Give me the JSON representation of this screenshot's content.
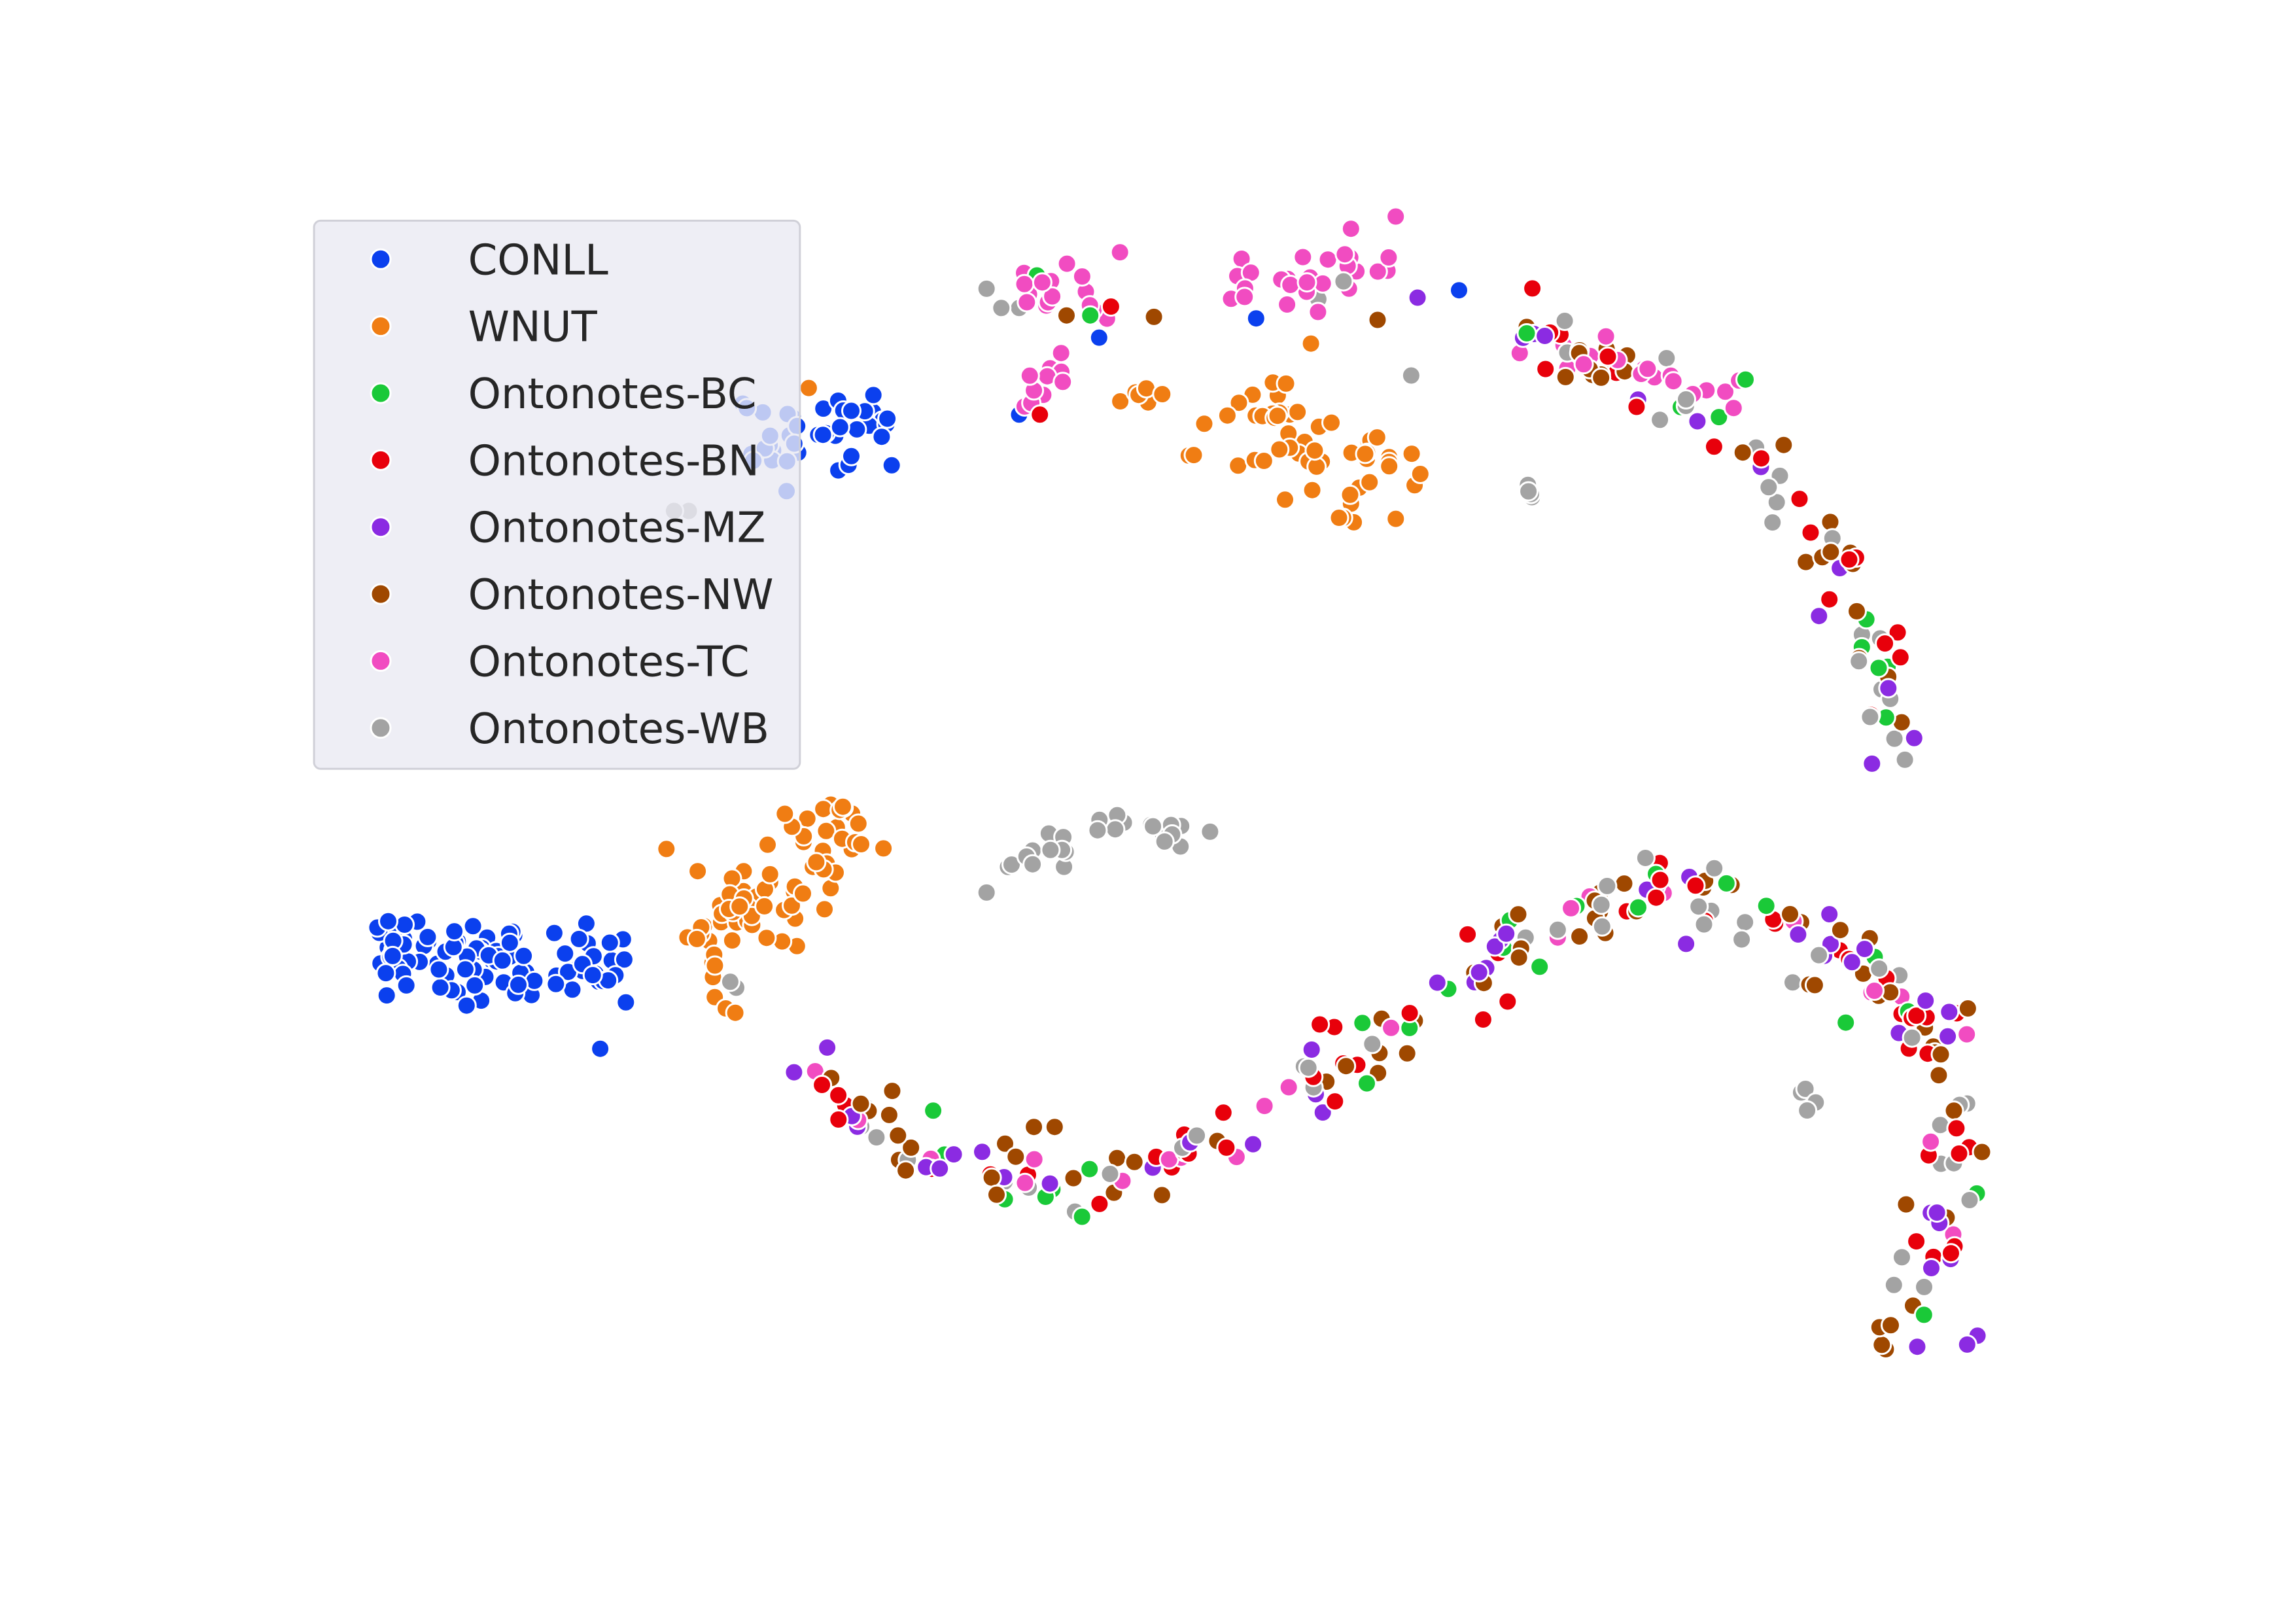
{
  "chart_data": {
    "type": "scatter",
    "title": "",
    "xlabel": "",
    "ylabel": "",
    "axes_visible": false,
    "grid": false,
    "xlim": [
      0,
      1550
    ],
    "ylim": [
      1096,
      0
    ],
    "legend": {
      "placement": "upper-left",
      "frame_color": "#eaeaf2"
    },
    "series": [
      {
        "name": "CONLL",
        "color": "#0b40ee",
        "clusters": [
          {
            "shape": "blob",
            "from": [
              250,
              645
            ],
            "to": [
              425,
              655
            ],
            "width": 34,
            "n": 95
          },
          {
            "shape": "blob",
            "from": [
              505,
              305
            ],
            "to": [
              600,
              280
            ],
            "width": 40,
            "n": 40
          },
          {
            "shape": "points",
            "points": [
              [
                742,
                228
              ],
              [
                985,
                196
              ],
              [
                688,
                280
              ],
              [
                848,
                215
              ]
            ]
          }
        ]
      },
      {
        "name": "WNUT",
        "color": "#f07d13",
        "clusters": [
          {
            "shape": "blob",
            "from": [
              465,
              655
            ],
            "to": [
              580,
              550
            ],
            "width": 40,
            "n": 80
          },
          {
            "shape": "blob",
            "from": [
              815,
              270
            ],
            "to": [
              955,
              335
            ],
            "width": 38,
            "n": 55
          },
          {
            "shape": "blob",
            "from": [
              755,
              270
            ],
            "to": [
              790,
              265
            ],
            "width": 8,
            "n": 6
          },
          {
            "shape": "points",
            "points": [
              [
                546,
                262
              ],
              [
                885,
                232
              ]
            ]
          }
        ]
      },
      {
        "name": "Ontonotes-BC",
        "color": "#1ac938",
        "clusters": [
          {
            "shape": "curve",
            "path": [
              [
                545,
                710
              ],
              [
                600,
                775
              ],
              [
                700,
                800
              ],
              [
                800,
                790
              ],
              [
                870,
                740
              ],
              [
                960,
                690
              ],
              [
                1040,
                630
              ],
              [
                1100,
                600
              ],
              [
                1200,
                620
              ],
              [
                1300,
                680
              ],
              [
                1320,
                760
              ],
              [
                1300,
                860
              ],
              [
                1265,
                920
              ]
            ],
            "width": 28,
            "n": 24
          },
          {
            "shape": "curve",
            "path": [
              [
                1020,
                225
              ],
              [
                1100,
                250
              ],
              [
                1180,
                300
              ],
              [
                1240,
                380
              ],
              [
                1270,
                450
              ],
              [
                1275,
                520
              ]
            ],
            "width": 24,
            "n": 10
          },
          {
            "shape": "points",
            "points": [
              [
                700,
                186
              ],
              [
                736,
                213
              ],
              [
                630,
                750
              ]
            ]
          }
        ]
      },
      {
        "name": "Ontonotes-BN",
        "color": "#e8000b",
        "clusters": [
          {
            "shape": "curve",
            "path": [
              [
                545,
                710
              ],
              [
                600,
                775
              ],
              [
                700,
                800
              ],
              [
                800,
                790
              ],
              [
                870,
                740
              ],
              [
                960,
                690
              ],
              [
                1040,
                630
              ],
              [
                1100,
                600
              ],
              [
                1200,
                620
              ],
              [
                1300,
                680
              ],
              [
                1320,
                760
              ],
              [
                1300,
                860
              ],
              [
                1265,
                920
              ]
            ],
            "width": 28,
            "n": 52
          },
          {
            "shape": "curve",
            "path": [
              [
                1020,
                225
              ],
              [
                1100,
                250
              ],
              [
                1180,
                300
              ],
              [
                1240,
                380
              ],
              [
                1270,
                450
              ],
              [
                1275,
                520
              ]
            ],
            "width": 24,
            "n": 18
          },
          {
            "shape": "points",
            "points": [
              [
                750,
                207
              ],
              [
                702,
                280
              ]
            ]
          }
        ]
      },
      {
        "name": "Ontonotes-MZ",
        "color": "#8b2be2",
        "clusters": [
          {
            "shape": "curve",
            "path": [
              [
                545,
                710
              ],
              [
                600,
                775
              ],
              [
                700,
                800
              ],
              [
                800,
                790
              ],
              [
                870,
                740
              ],
              [
                960,
                690
              ],
              [
                1040,
                630
              ],
              [
                1100,
                600
              ],
              [
                1200,
                620
              ],
              [
                1300,
                680
              ],
              [
                1320,
                760
              ],
              [
                1300,
                860
              ],
              [
                1265,
                920
              ]
            ],
            "width": 28,
            "n": 44
          },
          {
            "shape": "curve",
            "path": [
              [
                1020,
                225
              ],
              [
                1100,
                250
              ],
              [
                1180,
                300
              ],
              [
                1240,
                380
              ],
              [
                1270,
                450
              ],
              [
                1275,
                520
              ]
            ],
            "width": 24,
            "n": 10
          },
          {
            "shape": "points",
            "points": [
              [
                1228,
                416
              ],
              [
                1328,
                908
              ],
              [
                1335,
                902
              ],
              [
                957,
                201
              ]
            ]
          }
        ]
      },
      {
        "name": "Ontonotes-NW",
        "color": "#9f4800",
        "clusters": [
          {
            "shape": "curve",
            "path": [
              [
                545,
                710
              ],
              [
                600,
                775
              ],
              [
                700,
                800
              ],
              [
                800,
                790
              ],
              [
                870,
                740
              ],
              [
                960,
                690
              ],
              [
                1040,
                630
              ],
              [
                1100,
                600
              ],
              [
                1200,
                620
              ],
              [
                1300,
                680
              ],
              [
                1320,
                760
              ],
              [
                1300,
                860
              ],
              [
                1265,
                920
              ]
            ],
            "width": 28,
            "n": 70
          },
          {
            "shape": "curve",
            "path": [
              [
                1020,
                225
              ],
              [
                1100,
                250
              ],
              [
                1180,
                300
              ],
              [
                1240,
                380
              ],
              [
                1270,
                450
              ],
              [
                1275,
                520
              ]
            ],
            "width": 24,
            "n": 24
          },
          {
            "shape": "points",
            "points": [
              [
                720,
                213
              ],
              [
                779,
                214
              ],
              [
                930,
                216
              ],
              [
                698,
                761
              ],
              [
                712,
                761
              ]
            ]
          }
        ]
      },
      {
        "name": "Ontonotes-TC",
        "color": "#f14cc1",
        "clusters": [
          {
            "shape": "blob",
            "from": [
              830,
              200
            ],
            "to": [
              950,
              180
            ],
            "width": 26,
            "n": 28
          },
          {
            "shape": "blob",
            "from": [
              690,
              190
            ],
            "to": [
              755,
              195
            ],
            "width": 26,
            "n": 16
          },
          {
            "shape": "blob",
            "from": [
              690,
              275
            ],
            "to": [
              720,
              238
            ],
            "width": 14,
            "n": 10
          },
          {
            "shape": "curve",
            "path": [
              [
                1020,
                220
              ],
              [
                1100,
                245
              ],
              [
                1170,
                280
              ]
            ],
            "width": 22,
            "n": 22
          },
          {
            "shape": "curve",
            "path": [
              [
                545,
                710
              ],
              [
                600,
                775
              ],
              [
                700,
                800
              ],
              [
                800,
                790
              ],
              [
                870,
                740
              ],
              [
                960,
                690
              ],
              [
                1040,
                630
              ],
              [
                1100,
                600
              ],
              [
                1200,
                620
              ],
              [
                1300,
                680
              ],
              [
                1320,
                760
              ],
              [
                1300,
                860
              ],
              [
                1265,
                920
              ]
            ],
            "width": 28,
            "n": 24
          }
        ]
      },
      {
        "name": "Ontonotes-WB",
        "color": "#a3a3a3",
        "clusters": [
          {
            "shape": "curve",
            "path": [
              [
                660,
                598
              ],
              [
                700,
                575
              ],
              [
                760,
                558
              ],
              [
                818,
                566
              ]
            ],
            "width": 14,
            "n": 26
          },
          {
            "shape": "blob",
            "from": [
              1025,
              322
            ],
            "to": [
              1035,
              338
            ],
            "width": 6,
            "n": 4
          },
          {
            "shape": "blob",
            "from": [
              1215,
              737
            ],
            "to": [
              1224,
              748
            ],
            "width": 6,
            "n": 4
          },
          {
            "shape": "blob",
            "from": [
              952,
              252
            ],
            "to": [
              956,
              255
            ],
            "width": 3,
            "n": 2
          },
          {
            "shape": "curve",
            "path": [
              [
                545,
                710
              ],
              [
                600,
                775
              ],
              [
                700,
                800
              ],
              [
                800,
                790
              ],
              [
                870,
                740
              ],
              [
                960,
                690
              ],
              [
                1040,
                630
              ],
              [
                1100,
                600
              ],
              [
                1200,
                620
              ],
              [
                1300,
                680
              ],
              [
                1320,
                760
              ],
              [
                1300,
                860
              ],
              [
                1265,
                920
              ]
            ],
            "width": 28,
            "n": 40
          },
          {
            "shape": "curve",
            "path": [
              [
                1020,
                225
              ],
              [
                1100,
                250
              ],
              [
                1180,
                300
              ],
              [
                1240,
                380
              ],
              [
                1270,
                450
              ],
              [
                1275,
                520
              ]
            ],
            "width": 24,
            "n": 20
          },
          {
            "shape": "points",
            "points": [
              [
                666,
                195
              ],
              [
                676,
                208
              ],
              [
                688,
                208
              ],
              [
                907,
                190
              ],
              [
                890,
                202
              ],
              [
                497,
                667
              ],
              [
                493,
                663
              ],
              [
                465,
                345
              ],
              [
                455,
                345
              ]
            ]
          }
        ]
      }
    ]
  }
}
